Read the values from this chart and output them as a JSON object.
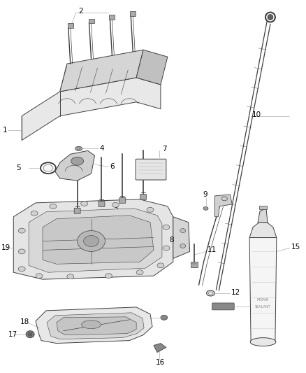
{
  "background_color": "#ffffff",
  "line_color": "#404040",
  "label_color": "#000000",
  "gray_fill": "#d8d8d8",
  "light_fill": "#f0f0f0",
  "mid_fill": "#c0c0c0"
}
